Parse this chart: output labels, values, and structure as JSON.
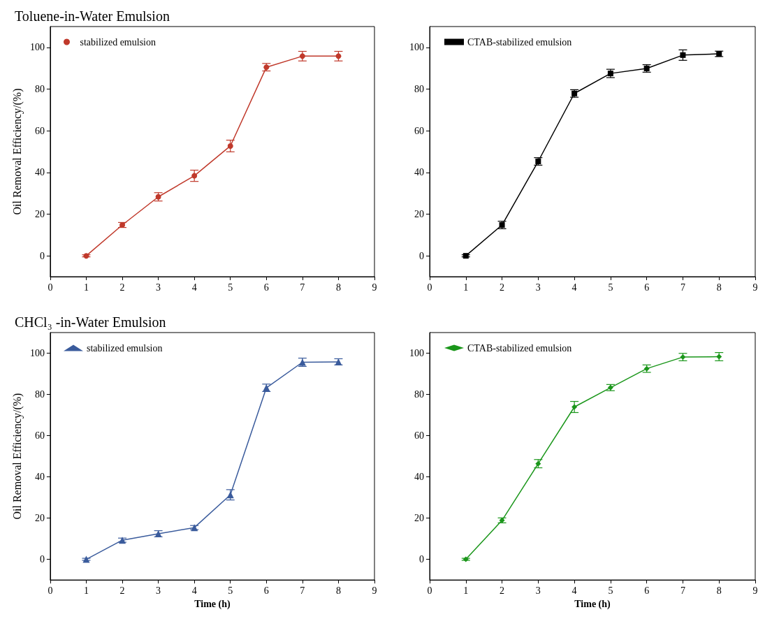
{
  "chart_data": [
    {
      "type": "line",
      "title": "Toluene-in-Water Emulsion",
      "ylabel": "Oil Removal Efficiency/(%)",
      "x": [
        1,
        2,
        3,
        4,
        5,
        6,
        7,
        8
      ],
      "marker": "circle",
      "legend": "top left",
      "xlim": [
        0,
        9
      ],
      "xticks": [
        0,
        1,
        2,
        3,
        4,
        5,
        6,
        7,
        8,
        9
      ],
      "ylim": [
        -10,
        110
      ],
      "yticks": [
        0,
        20,
        40,
        60,
        80,
        100
      ],
      "series": [
        {
          "name": "stabilized emulsion",
          "color": "#c0392b",
          "values": [
            0,
            14.8,
            28.3,
            38.4,
            52.7,
            90.5,
            95.8,
            95.8
          ],
          "errors": [
            0.5,
            1.2,
            2,
            2.7,
            2.8,
            1.8,
            2.3,
            2.3
          ]
        }
      ]
    },
    {
      "type": "line",
      "x": [
        1,
        2,
        3,
        4,
        5,
        6,
        7,
        8
      ],
      "marker": "square",
      "legend": "top left",
      "xlim": [
        0,
        9
      ],
      "xticks": [
        0,
        1,
        2,
        3,
        4,
        5,
        6,
        7,
        8,
        9
      ],
      "ylim": [
        -10,
        110
      ],
      "yticks": [
        0,
        20,
        40,
        60,
        80,
        100
      ],
      "series": [
        {
          "name": "CTAB-stabilized emulsion",
          "color": "#000000",
          "values": [
            0,
            14.8,
            45.3,
            77.9,
            87.5,
            89.9,
            96.3,
            96.9
          ],
          "errors": [
            0.5,
            1.8,
            1.8,
            1.8,
            2,
            1.8,
            2.5,
            1.3
          ]
        }
      ]
    },
    {
      "type": "line",
      "title": "CHCl₃ -in-Water Emulsion",
      "ylabel": "Oil Removal Efficiency/(%)",
      "xlabel": "Time (h)",
      "x": [
        1,
        2,
        3,
        4,
        5,
        6,
        7,
        8
      ],
      "marker": "triangle",
      "legend": "top left",
      "xlim": [
        0,
        9
      ],
      "xticks": [
        0,
        1,
        2,
        3,
        4,
        5,
        6,
        7,
        8,
        9
      ],
      "ylim": [
        -10,
        110
      ],
      "yticks": [
        0,
        20,
        40,
        60,
        80,
        100
      ],
      "series": [
        {
          "name": "stabilized emulsion",
          "color": "#3a5b9c",
          "values": [
            0,
            9.3,
            12.4,
            15.4,
            31.3,
            83.2,
            95.6,
            95.8
          ],
          "errors": [
            0.5,
            1,
            1.5,
            1,
            2.5,
            1.8,
            2,
            1.5
          ]
        }
      ]
    },
    {
      "type": "line",
      "xlabel": "Time (h)",
      "x": [
        1,
        2,
        3,
        4,
        5,
        6,
        7,
        8
      ],
      "marker": "diamond",
      "legend": "top left",
      "xlim": [
        0,
        9
      ],
      "xticks": [
        0,
        1,
        2,
        3,
        4,
        5,
        6,
        7,
        8,
        9
      ],
      "ylim": [
        -10,
        110
      ],
      "yticks": [
        0,
        20,
        40,
        60,
        80,
        100
      ],
      "series": [
        {
          "name": "CTAB-stabilized emulsion",
          "color": "#1a961a",
          "values": [
            0,
            18.9,
            46.4,
            73.9,
            83.3,
            92.5,
            98.1,
            98.3
          ],
          "errors": [
            0.5,
            1.2,
            2,
            2.7,
            1.5,
            1.8,
            1.8,
            2
          ]
        }
      ]
    }
  ]
}
